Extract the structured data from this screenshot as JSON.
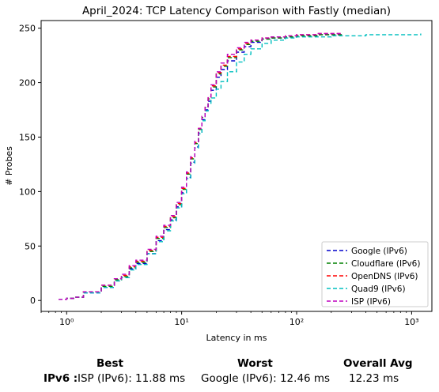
{
  "chart_data": {
    "type": "line",
    "title": "April_2024: TCP Latency Comparison with Fastly (median)",
    "xlabel": "Latency in ms",
    "ylabel": "# Probes",
    "xscale": "log",
    "xlim": [
      0.6,
      1500
    ],
    "ylim": [
      -10,
      257
    ],
    "xticks": [
      1,
      10,
      100,
      1000
    ],
    "xtick_labels": [
      "10⁰",
      "10¹",
      "10²",
      "10³"
    ],
    "yticks": [
      0,
      50,
      100,
      150,
      200,
      250
    ],
    "legend_position": "lower-right",
    "grid": false,
    "series": [
      {
        "name": "Google (IPv6)",
        "color": "#0000cc",
        "x": [
          0.85,
          1.0,
          1.2,
          1.4,
          2.0,
          2.6,
          3.0,
          3.5,
          4.0,
          5.0,
          6.0,
          7.0,
          8.0,
          9.0,
          10.0,
          11.0,
          12.0,
          13.0,
          14.0,
          15.0,
          16.0,
          17.0,
          18.0,
          20.0,
          22.0,
          25.0,
          30.0,
          35.0,
          40.0,
          50.0,
          60.0,
          80.0,
          100.0,
          150.0,
          250.0
        ],
        "y": [
          1,
          2,
          3,
          7,
          12,
          18,
          21,
          29,
          34,
          43,
          55,
          65,
          74,
          86,
          99,
          113,
          127,
          141,
          154,
          166,
          175,
          183,
          193,
          205,
          212,
          220,
          228,
          233,
          237,
          240,
          241,
          242,
          243,
          244,
          245
        ]
      },
      {
        "name": "Cloudflare (IPv6)",
        "color": "#008000",
        "x": [
          0.85,
          1.0,
          1.2,
          1.4,
          2.0,
          2.6,
          3.0,
          3.5,
          4.0,
          5.0,
          6.0,
          7.0,
          8.0,
          9.0,
          10.0,
          11.0,
          12.0,
          13.0,
          14.0,
          15.0,
          16.0,
          17.0,
          18.0,
          20.0,
          22.0,
          25.0,
          30.0,
          35.0,
          40.0,
          50.0,
          60.0,
          80.0,
          100.0,
          150.0,
          250.0
        ],
        "y": [
          1,
          2,
          3,
          8,
          13,
          19,
          22,
          30,
          35,
          45,
          57,
          67,
          76,
          88,
          102,
          116,
          130,
          144,
          157,
          168,
          177,
          185,
          196,
          208,
          215,
          223,
          230,
          235,
          238,
          240,
          241,
          242,
          243,
          244,
          245
        ]
      },
      {
        "name": "OpenDNS (IPv6)",
        "color": "#ff0000",
        "x": [
          0.85,
          1.0,
          1.2,
          1.4,
          2.0,
          2.6,
          3.0,
          3.5,
          4.0,
          5.0,
          6.0,
          7.0,
          8.0,
          9.0,
          10.0,
          11.0,
          12.0,
          13.0,
          14.0,
          15.0,
          16.0,
          17.0,
          18.0,
          20.0,
          22.0,
          25.0,
          30.0,
          35.0,
          40.0,
          50.0,
          60.0,
          80.0,
          100.0,
          150.0,
          250.0
        ],
        "y": [
          1,
          2,
          3,
          8,
          14,
          20,
          23,
          31,
          36,
          46,
          58,
          68,
          77,
          89,
          103,
          117,
          131,
          145,
          158,
          169,
          178,
          186,
          197,
          209,
          216,
          224,
          231,
          236,
          239,
          241,
          242,
          243,
          244,
          245,
          245
        ]
      },
      {
        "name": "Quad9 (IPv6)",
        "color": "#00bfbf",
        "x": [
          0.85,
          1.0,
          1.2,
          1.4,
          2.0,
          2.6,
          3.0,
          3.5,
          4.0,
          5.0,
          6.0,
          7.0,
          8.0,
          9.0,
          10.0,
          11.0,
          12.0,
          13.0,
          14.0,
          15.0,
          16.0,
          17.0,
          18.0,
          20.0,
          22.0,
          25.0,
          30.0,
          35.0,
          40.0,
          50.0,
          60.0,
          80.0,
          100.0,
          200.0,
          400.0,
          1200.0
        ],
        "y": [
          1,
          2,
          3,
          7,
          12,
          18,
          21,
          28,
          33,
          43,
          54,
          64,
          73,
          85,
          98,
          112,
          126,
          140,
          153,
          165,
          174,
          181,
          186,
          194,
          201,
          210,
          219,
          226,
          231,
          236,
          239,
          241,
          242,
          243,
          244,
          245
        ]
      },
      {
        "name": "ISP (IPv6)",
        "color": "#bf00bf",
        "x": [
          0.85,
          1.0,
          1.2,
          1.4,
          2.0,
          2.6,
          3.0,
          3.5,
          4.0,
          5.0,
          6.0,
          7.0,
          8.0,
          9.0,
          10.0,
          11.0,
          12.0,
          13.0,
          14.0,
          15.0,
          16.0,
          17.0,
          18.0,
          20.0,
          22.0,
          25.0,
          30.0,
          35.0,
          40.0,
          50.0,
          60.0,
          80.0,
          100.0,
          150.0,
          250.0
        ],
        "y": [
          1,
          2,
          3,
          8,
          14,
          20,
          24,
          32,
          37,
          47,
          59,
          69,
          78,
          90,
          104,
          118,
          132,
          146,
          158,
          169,
          178,
          187,
          198,
          210,
          218,
          226,
          232,
          237,
          239,
          241,
          242,
          243,
          244,
          245,
          245
        ]
      }
    ]
  },
  "summary": {
    "headers": {
      "best": "Best",
      "worst": "Worst",
      "avg": "Overall Avg"
    },
    "row_label": "IPv6 :",
    "best": "ISP (IPv6): 11.88 ms",
    "worst": "Google (IPv6): 12.46 ms",
    "avg": "12.23 ms"
  }
}
